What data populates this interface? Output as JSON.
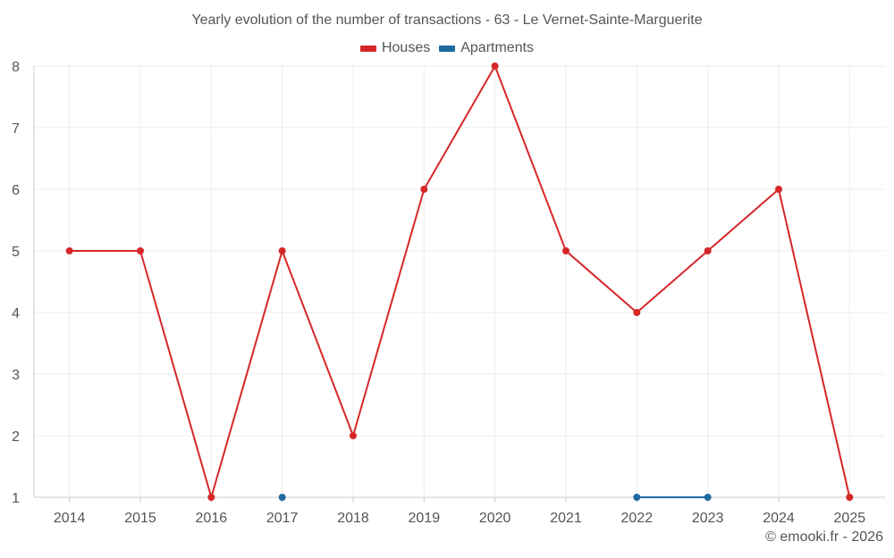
{
  "chart_data": {
    "type": "line",
    "title": "Yearly evolution of the number of transactions - 63 - Le Vernet-Sainte-Marguerite",
    "categories": [
      "2014",
      "2015",
      "2016",
      "2017",
      "2018",
      "2019",
      "2020",
      "2021",
      "2022",
      "2023",
      "2024",
      "2025"
    ],
    "ylim": [
      1,
      8
    ],
    "yticks": [
      1,
      2,
      3,
      4,
      5,
      6,
      7,
      8
    ],
    "grid": true,
    "legend_position": "top-center",
    "series": [
      {
        "name": "Houses",
        "color": "#d62728",
        "values": [
          5,
          5,
          1,
          5,
          2,
          6,
          8,
          5,
          4,
          5,
          6,
          1
        ]
      },
      {
        "name": "Apartments",
        "color": "#1f6aa0",
        "values": [
          null,
          null,
          null,
          1,
          null,
          null,
          null,
          null,
          1,
          1,
          null,
          null
        ]
      }
    ]
  },
  "credit": "© emooki.fr - 2026"
}
